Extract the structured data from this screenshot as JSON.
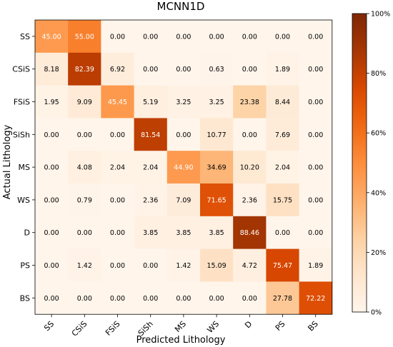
{
  "chart_data": {
    "type": "heatmap",
    "title": "MCNN1D",
    "xlabel": "Predicted Lithology",
    "ylabel": "Actual Lithology",
    "x_categories": [
      "SS",
      "CSiS",
      "FSiS",
      "SiSh",
      "MS",
      "WS",
      "D",
      "PS",
      "BS"
    ],
    "y_categories": [
      "SS",
      "CSiS",
      "FSiS",
      "SiSh",
      "MS",
      "WS",
      "D",
      "PS",
      "BS"
    ],
    "values": [
      [
        45.0,
        55.0,
        0.0,
        0.0,
        0.0,
        0.0,
        0.0,
        0.0,
        0.0
      ],
      [
        8.18,
        82.39,
        6.92,
        0.0,
        0.0,
        0.63,
        0.0,
        1.89,
        0.0
      ],
      [
        1.95,
        9.09,
        45.45,
        5.19,
        3.25,
        3.25,
        23.38,
        8.44,
        0.0
      ],
      [
        0.0,
        0.0,
        0.0,
        81.54,
        0.0,
        10.77,
        0.0,
        7.69,
        0.0
      ],
      [
        0.0,
        4.08,
        2.04,
        2.04,
        44.9,
        34.69,
        10.2,
        2.04,
        0.0
      ],
      [
        0.0,
        0.79,
        0.0,
        2.36,
        7.09,
        71.65,
        2.36,
        15.75,
        0.0
      ],
      [
        0.0,
        0.0,
        0.0,
        3.85,
        3.85,
        3.85,
        88.46,
        0.0,
        0.0
      ],
      [
        0.0,
        1.42,
        0.0,
        0.0,
        1.42,
        15.09,
        4.72,
        75.47,
        1.89
      ],
      [
        0.0,
        0.0,
        0.0,
        0.0,
        0.0,
        0.0,
        0.0,
        27.78,
        72.22
      ]
    ],
    "colorbar": {
      "range": [
        0,
        100
      ],
      "ticks": [
        "0%",
        "20%",
        "40%",
        "60%",
        "80%",
        "100%"
      ],
      "colormap": "Oranges",
      "low_color": "#fff5eb",
      "high_color": "#7f2704"
    },
    "grid": false
  }
}
